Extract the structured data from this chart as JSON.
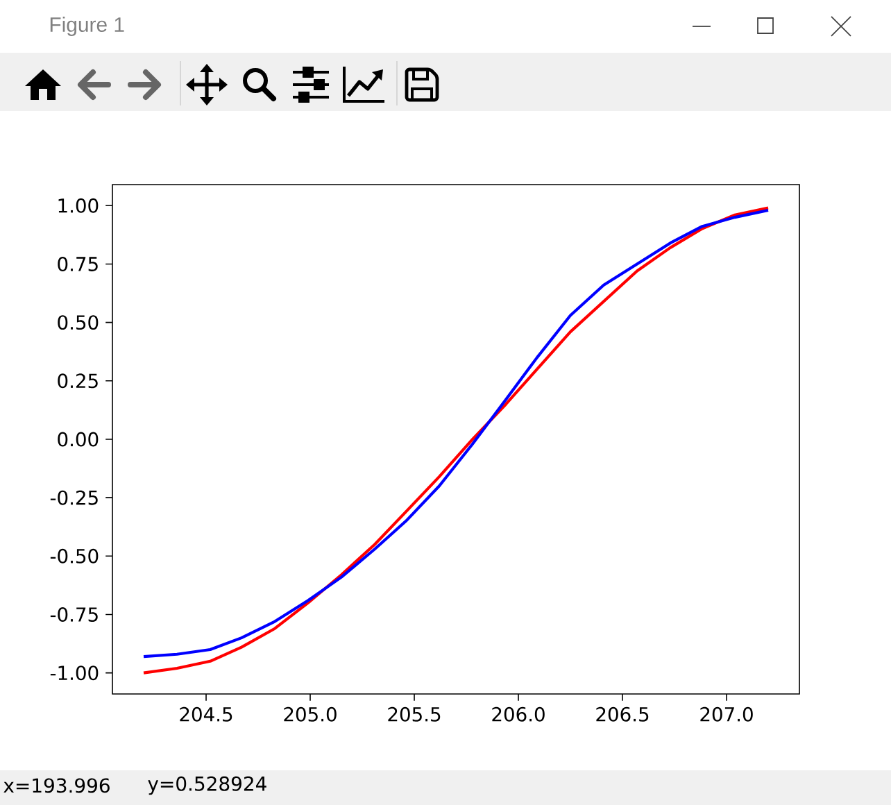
{
  "chart_data": {
    "type": "line",
    "title": "Figure 1",
    "annotations": [
      "x=193.996",
      "y=0.528924"
    ],
    "x": [
      204.2,
      204.36,
      204.52,
      204.67,
      204.83,
      204.99,
      205.15,
      205.31,
      205.46,
      205.62,
      205.78,
      205.94,
      206.09,
      206.25,
      206.41,
      206.57,
      206.73,
      206.88,
      207.04,
      207.2
    ],
    "series": [
      {
        "color": "#ff0000",
        "values": [
          -1.0,
          -0.98,
          -0.95,
          -0.89,
          -0.81,
          -0.7,
          -0.58,
          -0.45,
          -0.31,
          -0.16,
          0.0,
          0.15,
          0.3,
          0.46,
          0.59,
          0.72,
          0.82,
          0.9,
          0.96,
          0.99
        ]
      },
      {
        "color": "#0000ff",
        "values": [
          -0.93,
          -0.92,
          -0.9,
          -0.85,
          -0.78,
          -0.69,
          -0.59,
          -0.47,
          -0.35,
          -0.2,
          -0.02,
          0.17,
          0.35,
          0.53,
          0.66,
          0.75,
          0.84,
          0.91,
          0.95,
          0.98
        ]
      }
    ],
    "xlim": [
      204.05,
      207.35
    ],
    "ylim": [
      -1.09,
      1.09
    ],
    "xticks": [
      204.5,
      {
        "value": 205,
        "label": "205.0"
      },
      205.5,
      {
        "value": 206,
        "label": "206.0"
      },
      206.5,
      {
        "value": 207,
        "label": "207.0"
      }
    ],
    "yticks": [
      {
        "value": -1,
        "label": "-1.00"
      },
      -0.75,
      {
        "value": -0.5,
        "label": "-0.50"
      },
      -0.25,
      {
        "value": 0,
        "label": "0.00"
      },
      0.25,
      {
        "value": 0.5,
        "label": "0.50"
      },
      0.75,
      {
        "value": 1,
        "label": "1.00"
      }
    ]
  }
}
